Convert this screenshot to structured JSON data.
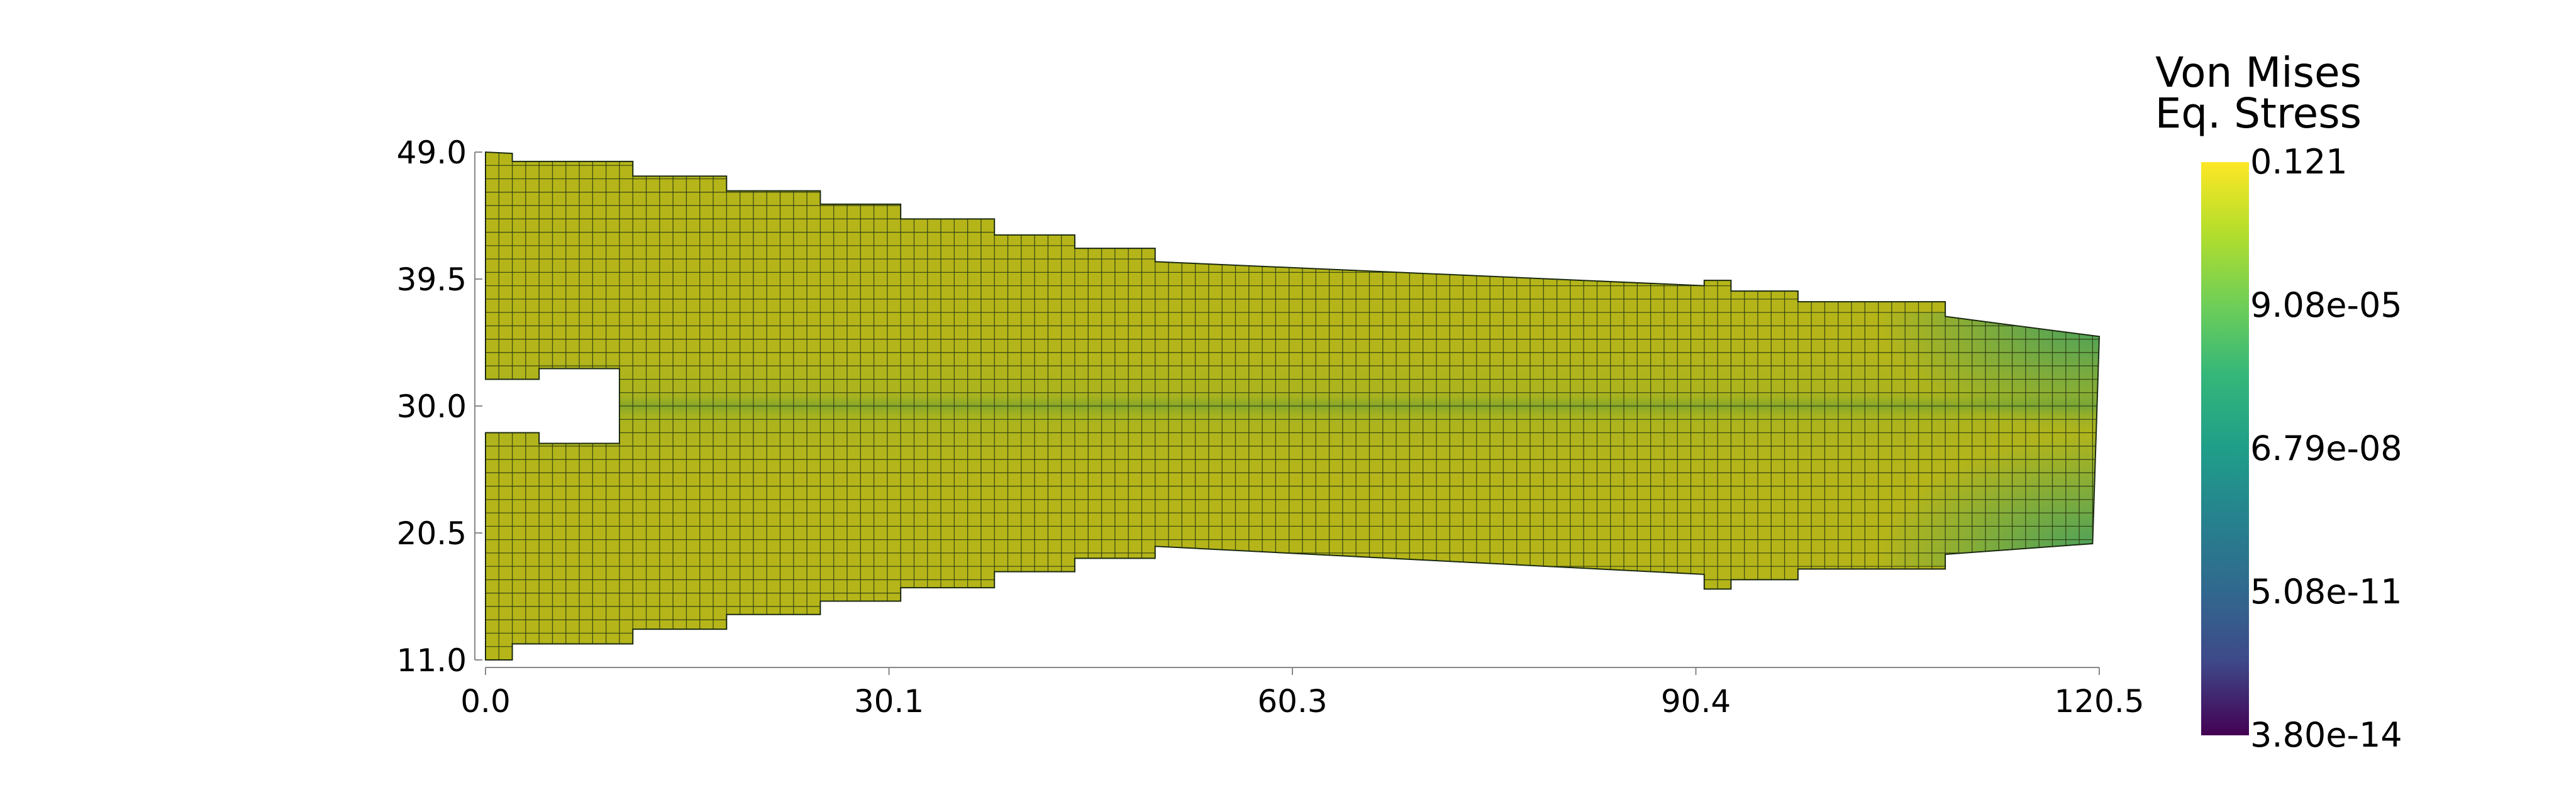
{
  "chart_data": {
    "type": "heatmap",
    "title": "",
    "xlabel": "",
    "ylabel": "",
    "xlim": [
      0.0,
      120.5
    ],
    "ylim": [
      11.0,
      49.0
    ],
    "x_ticks": [
      "0.0",
      "30.1",
      "60.3",
      "90.4",
      "120.5"
    ],
    "y_ticks": [
      "49.0",
      "39.5",
      "30.0",
      "20.5",
      "11.0"
    ],
    "colorbar": {
      "title_line1": "Von Mises",
      "title_line2": "Eq. Stress",
      "colormap": "viridis",
      "scale": "log",
      "min": 3.8e-14,
      "max": 0.121,
      "tick_labels": [
        "0.121",
        "9.08e-05",
        "6.79e-08",
        "5.08e-11",
        "3.80e-14"
      ]
    },
    "mesh": {
      "cells_x": 120,
      "cells_y": 38,
      "cell_width": 1.0,
      "cell_height": 1.0,
      "notch": {
        "x_range": [
          0.0,
          10.0
        ],
        "y_range": [
          28.0,
          32.0
        ]
      },
      "upper_profile": [
        [
          0,
          49.0
        ],
        [
          2,
          48.9
        ],
        [
          2,
          48.3
        ],
        [
          11,
          48.3
        ],
        [
          11,
          47.2
        ],
        [
          18,
          47.2
        ],
        [
          18,
          46.1
        ],
        [
          25,
          46.1
        ],
        [
          25,
          45.1
        ],
        [
          31,
          45.1
        ],
        [
          31,
          44.0
        ],
        [
          38,
          44.0
        ],
        [
          38,
          42.8
        ],
        [
          44,
          42.8
        ],
        [
          44,
          41.8
        ],
        [
          50,
          41.8
        ],
        [
          50,
          40.8
        ],
        [
          91,
          39.0
        ],
        [
          91,
          39.4
        ],
        [
          93,
          39.4
        ],
        [
          93,
          38.6
        ],
        [
          98,
          38.6
        ],
        [
          98,
          37.8
        ],
        [
          109,
          37.8
        ],
        [
          109,
          36.7
        ],
        [
          120.5,
          35.2
        ]
      ],
      "lower_profile": [
        [
          0,
          11.0
        ],
        [
          2,
          11.0
        ],
        [
          2,
          12.2
        ],
        [
          11,
          12.2
        ],
        [
          11,
          13.3
        ],
        [
          18,
          13.3
        ],
        [
          18,
          14.4
        ],
        [
          25,
          14.4
        ],
        [
          25,
          15.4
        ],
        [
          31,
          15.4
        ],
        [
          31,
          16.4
        ],
        [
          38,
          16.4
        ],
        [
          38,
          17.6
        ],
        [
          44,
          17.6
        ],
        [
          44,
          18.6
        ],
        [
          50,
          18.6
        ],
        [
          50,
          19.5
        ],
        [
          91,
          17.4
        ],
        [
          91,
          16.3
        ],
        [
          93,
          16.3
        ],
        [
          93,
          17.0
        ],
        [
          98,
          17.0
        ],
        [
          98,
          17.8
        ],
        [
          109,
          17.8
        ],
        [
          109,
          18.9
        ],
        [
          120,
          19.7
        ]
      ],
      "field_description_colors": {
        "base": "#b5b51a",
        "center_line": "#5e9a35",
        "tip": "#2f9d6e",
        "root_edge": "#a3ad23"
      }
    }
  }
}
